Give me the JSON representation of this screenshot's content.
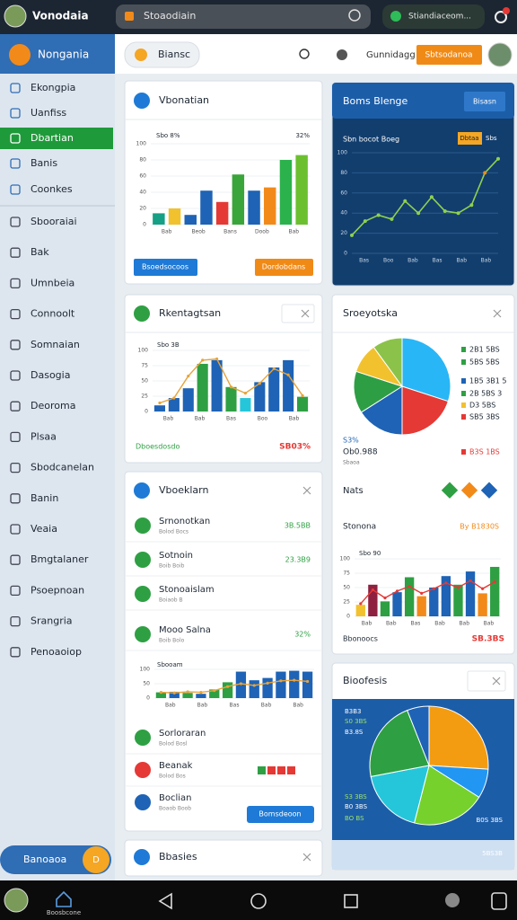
{
  "top_bar": {
    "app_name": "Vonodaia",
    "search": "Stoaodiain",
    "pill": "Stiandiaceom..."
  },
  "sidebar": {
    "title": "Nongania",
    "items": [
      "Ekongpia",
      "Uanfiss",
      "Dbartian",
      "Banis",
      "Coonkes",
      "Sbooraiai",
      "Bak",
      "Umnbeia",
      "Connoolt",
      "Somnaian",
      "Dasogia",
      "Deoroma",
      "Plsaa",
      "Sbodcanelan",
      "Banin",
      "Veaia",
      "Bmgtalaner",
      "Psoepnoan",
      "Srangria",
      "Penoaoiop"
    ],
    "active_index": 2,
    "footer": "Banoaoa",
    "footer_badge": "D"
  },
  "header": {
    "filter": "Biansc",
    "user": "Gunnidagg",
    "button": "Sbtsodanoa"
  },
  "cards": {
    "overview": {
      "title": "Vbonatian",
      "label_left": "Sbo 8%",
      "label_right": "32%",
      "chart": {
        "type": "bar",
        "ylim": [
          0,
          100
        ],
        "yticks": [
          0,
          20,
          40,
          60,
          80,
          100
        ],
        "x_labels": [
          "Bab",
          "Beob",
          "Bans",
          "Doob",
          "Bab"
        ],
        "values": [
          14,
          20,
          12,
          42,
          28,
          62,
          42,
          46,
          80,
          86
        ],
        "colors": [
          "#16a085",
          "#f2c12e",
          "#1e63b5",
          "#1e63b5",
          "#e53935",
          "#3aa53a",
          "#1e63b5",
          "#f28a1a",
          "#2bb24c",
          "#6cc030"
        ]
      },
      "buttons": [
        "Bsoedsocoos",
        "Dordobdans"
      ]
    },
    "trend": {
      "title": "Boms Blenge",
      "button": "Bisasn",
      "subtitle": "Sbn bocot Boeg",
      "tags": [
        "Dbtaa",
        "Sbs"
      ],
      "chart": {
        "type": "line",
        "ylim": [
          0,
          100
        ],
        "yticks": [
          0,
          20,
          40,
          60,
          80,
          100
        ],
        "x_labels": [
          "Bas",
          "Boo",
          "Bab",
          "Bas",
          "Bab",
          "Bab"
        ],
        "values": [
          18,
          32,
          38,
          34,
          52,
          40,
          56,
          42,
          40,
          48,
          80,
          94
        ],
        "color": "#8fd14f"
      }
    },
    "engagement": {
      "title": "Rkentagtsan",
      "chart_label": "Sbo 3B",
      "chart": {
        "type": "bar",
        "ylim": [
          0,
          100
        ],
        "yticks": [
          0,
          25,
          50,
          75,
          100
        ],
        "x_labels": [
          "Bab",
          "Bab",
          "Bas",
          "Boo",
          "Bab"
        ],
        "values": [
          10,
          22,
          38,
          78,
          84,
          40,
          22,
          48,
          72,
          84,
          24
        ],
        "colors": [
          "#1e63b5",
          "#1e63b5",
          "#1e63b5",
          "#2ea043",
          "#1e63b5",
          "#2ea043",
          "#26c6da",
          "#1e63b5",
          "#1e63b5",
          "#1e63b5",
          "#2ea043"
        ],
        "line": [
          14,
          22,
          58,
          84,
          86,
          40,
          30,
          46,
          70,
          60,
          26
        ],
        "line_color": "#e8a33a"
      },
      "footer_left": "Dboesdosdo",
      "footer_right": "SB03%"
    },
    "survey": {
      "title": "Sroeyotska",
      "pie": {
        "values": [
          30,
          20,
          16,
          14,
          10,
          10
        ],
        "colors": [
          "#29b6f6",
          "#e53935",
          "#1e63b5",
          "#2e9e44",
          "#f2c12e",
          "#8bc34a"
        ]
      },
      "legend": [
        "2B1 5BS",
        "5BS 5BS",
        "1B5 3B1 5",
        "2B 5BS 3",
        "D3 5BS",
        "SB5 3BS"
      ],
      "stat_value": "S3%",
      "stat_sub": "Ob0.988",
      "stat_note": "Sbaoa",
      "stat_right": "B3S 1BS",
      "nats": "Nats",
      "stonona": "Stonona",
      "stonona_value": "By B1830S",
      "chart_label": "Sbo 90",
      "chart": {
        "type": "bar",
        "ylim": [
          0,
          100
        ],
        "yticks": [
          0,
          25,
          50,
          75,
          100
        ],
        "x_labels": [
          "Bab",
          "Bab",
          "Bas",
          "Bab",
          "Bab",
          "Bab"
        ],
        "values": [
          20,
          55,
          26,
          42,
          68,
          35,
          50,
          70,
          55,
          78,
          40,
          86
        ],
        "colors": [
          "#f2c12e",
          "#8e2040",
          "#2ea043",
          "#1e63b5",
          "#2ea043",
          "#f28a1a",
          "#1e63b5",
          "#1e63b5",
          "#2ea043",
          "#1e63b5",
          "#f28a1a",
          "#2ea043"
        ],
        "line": [
          22,
          46,
          32,
          44,
          52,
          40,
          48,
          58,
          50,
          62,
          48,
          60
        ],
        "line_color": "#e53935"
      },
      "footer_left": "Bbonoocs",
      "footer_right": "SB.3BS"
    },
    "tasks": {
      "title": "Vboeklarn",
      "items": [
        {
          "title": "Srnonotkan",
          "sub": "Bolod Bocs",
          "value": "3B.5BB"
        },
        {
          "title": "Sotnoin",
          "sub": "Boib Boib",
          "value": "23.3B9"
        },
        {
          "title": "Stonoaislam",
          "sub": "Boiaob B"
        },
        {
          "title": "Mooo Salna",
          "sub": "Boib Bolo",
          "value": "32%"
        }
      ],
      "chart_label": "Sbooam",
      "chart": {
        "type": "bar",
        "ylim": [
          0,
          100
        ],
        "yticks": [
          0,
          50,
          100
        ],
        "x_labels": [
          "Bab",
          "Bab",
          "Bas",
          "Bab",
          "Bab"
        ],
        "values": [
          20,
          22,
          18,
          15,
          30,
          55,
          92,
          62,
          70,
          92,
          95,
          92
        ],
        "colors": [
          "#2ea043",
          "#1e63b5",
          "#2ea043",
          "#1e63b5",
          "#2ea043",
          "#2ea043",
          "#1e63b5",
          "#1e63b5",
          "#1e63b5",
          "#1e63b5",
          "#1e63b5",
          "#1e63b5"
        ],
        "line": [
          20,
          18,
          22,
          20,
          26,
          40,
          50,
          44,
          52,
          60,
          62,
          58
        ],
        "line_color": "#e8a33a"
      },
      "items2": [
        {
          "title": "Sorloraran",
          "sub": "Bolod Bosl"
        },
        {
          "title": "Beanak",
          "sub": "Bolod Bos"
        },
        {
          "title": "Boclian",
          "sub": "Boaob Boob"
        }
      ],
      "button": "Bomsdeoon"
    },
    "forecast": {
      "title": "Bioofesis",
      "pie": {
        "values": [
          26,
          8,
          20,
          18,
          22,
          6
        ],
        "colors": [
          "#f39c12",
          "#2196f3",
          "#76d12d",
          "#26c6da",
          "#2ea043",
          "#1e63b5"
        ]
      },
      "labels_left": [
        "B3B3",
        "S0 3BS",
        "B3.8S",
        "S3 3BS",
        "B0 3BS",
        "BO BS"
      ],
      "labels_right": [
        "B0S 3BS",
        "5BS3B"
      ]
    },
    "basics": {
      "title": "Bbasies"
    }
  },
  "bottom_nav": {
    "home": "Boosbcone"
  }
}
